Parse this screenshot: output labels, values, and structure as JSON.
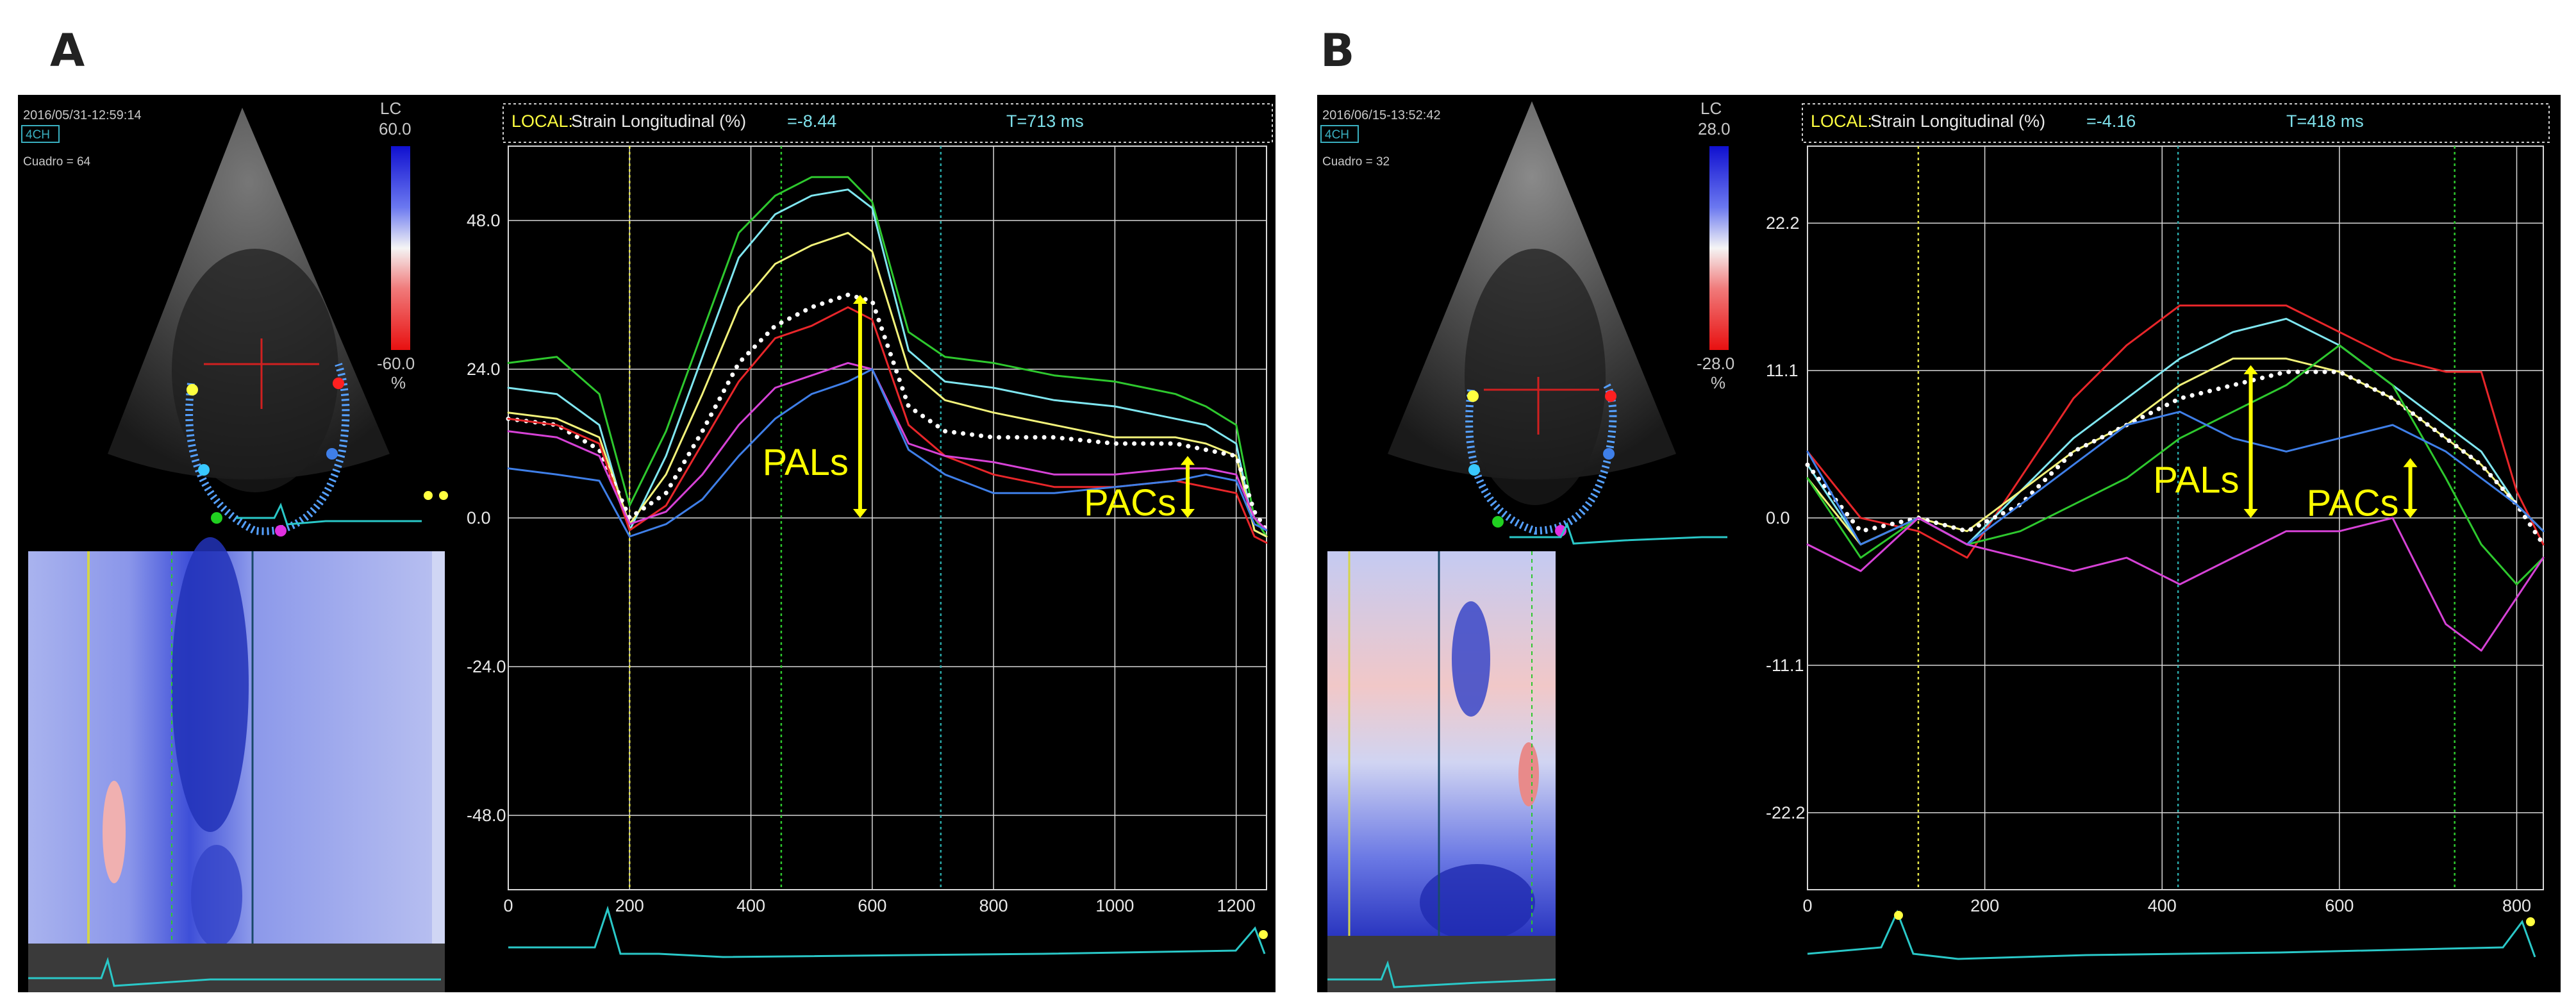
{
  "figure": {
    "panels": [
      {
        "letter": "A",
        "timestamp": "2016/05/31-12:59:14",
        "view": "4CH",
        "frame": "Cuadro = 64",
        "colorbar_label": "LC",
        "colorbar_max": "60.0",
        "colorbar_min": "-60.0",
        "colorbar_unit": "%",
        "header_local": "LOCAL:",
        "header_param": "Strain Longitudinal (%)",
        "header_value": "=-8.44",
        "header_time": "T=713 ms",
        "annotation_pals": "PALs",
        "annotation_pacs": "PACs",
        "colors": {
          "red": "#e8262a",
          "green": "#2ec82e",
          "cyan": "#7fe6f0",
          "yellow": "#f2f27a",
          "blue": "#3f7fe8",
          "magenta": "#d642d6",
          "white": "#ffffff",
          "arrow": "#ffff00"
        }
      },
      {
        "letter": "B",
        "timestamp": "2016/06/15-13:52:42",
        "view": "4CH",
        "frame": "Cuadro = 32",
        "colorbar_label": "LC",
        "colorbar_max": "28.0",
        "colorbar_min": "-28.0",
        "colorbar_unit": "%",
        "header_local": "LOCAL:",
        "header_param": "Strain Longitudinal (%)",
        "header_value": "=-4.16",
        "header_time": "T=418 ms",
        "annotation_pals": "PALs",
        "annotation_pacs": "PACs",
        "colors": {
          "red": "#e8262a",
          "green": "#2ec82e",
          "cyan": "#7fe6f0",
          "yellow": "#f2f27a",
          "blue": "#3f7fe8",
          "magenta": "#d642d6",
          "white": "#ffffff",
          "arrow": "#ffff00"
        }
      }
    ]
  },
  "chart_data": [
    {
      "panel": "A",
      "type": "line",
      "title": "Strain Longitudinal (%)",
      "xlabel": "ms",
      "ylabel": "%",
      "xlim": [
        0,
        1250
      ],
      "ylim": [
        -60,
        60
      ],
      "xticks": [
        0,
        200,
        400,
        600,
        800,
        1000,
        1200
      ],
      "yticks": [
        48.0,
        24.0,
        0.0,
        -24.0,
        -48.0
      ],
      "ytick_labels": [
        "48.0",
        "24.0",
        "0.0",
        "-24.0",
        "-48.0"
      ],
      "xtick_labels": [
        "0",
        "200",
        "400",
        "600",
        "800",
        "1000",
        "1200"
      ],
      "vertical_markers": [
        {
          "x": 200,
          "color": "#e6e64a"
        },
        {
          "x": 450,
          "color": "#2ec82e"
        },
        {
          "x": 713,
          "color": "#2aa8a8"
        }
      ],
      "series": [
        {
          "name": "green",
          "color": "#2ec82e",
          "x": [
            0,
            80,
            150,
            200,
            260,
            320,
            380,
            440,
            500,
            560,
            600,
            660,
            720,
            800,
            900,
            1000,
            1100,
            1150,
            1200,
            1230,
            1250
          ],
          "y": [
            25,
            26,
            20,
            2,
            14,
            30,
            46,
            52,
            55,
            55,
            51,
            30,
            26,
            25,
            23,
            22,
            20,
            18,
            15,
            0,
            -3
          ]
        },
        {
          "name": "cyan",
          "color": "#7fe6f0",
          "x": [
            0,
            80,
            150,
            200,
            260,
            320,
            380,
            440,
            500,
            560,
            600,
            660,
            720,
            800,
            900,
            1000,
            1100,
            1150,
            1200,
            1230,
            1250
          ],
          "y": [
            21,
            20,
            15,
            -2,
            10,
            26,
            42,
            49,
            52,
            53,
            50,
            27,
            22,
            21,
            19,
            18,
            16,
            15,
            12,
            -2,
            -3
          ]
        },
        {
          "name": "yellow",
          "color": "#f2f27a",
          "x": [
            0,
            80,
            150,
            200,
            260,
            320,
            380,
            440,
            500,
            560,
            600,
            660,
            720,
            800,
            900,
            1000,
            1100,
            1150,
            1200,
            1230,
            1250
          ],
          "y": [
            17,
            16,
            13,
            -1,
            7,
            20,
            34,
            41,
            44,
            46,
            43,
            24,
            19,
            17,
            15,
            13,
            13,
            12,
            10,
            -2,
            -3
          ]
        },
        {
          "name": "white-mean",
          "color": "#ffffff",
          "dotted": true,
          "x": [
            0,
            80,
            150,
            200,
            260,
            320,
            380,
            440,
            500,
            560,
            600,
            660,
            720,
            800,
            900,
            1000,
            1100,
            1150,
            1200,
            1230,
            1250
          ],
          "y": [
            16,
            15,
            11,
            0,
            4,
            14,
            25,
            31,
            34,
            36,
            35,
            18,
            14,
            13,
            13,
            12,
            12,
            11,
            10,
            1,
            -2
          ]
        },
        {
          "name": "red",
          "color": "#e8262a",
          "x": [
            0,
            80,
            150,
            200,
            260,
            320,
            380,
            440,
            500,
            560,
            600,
            660,
            720,
            800,
            900,
            1000,
            1100,
            1150,
            1200,
            1230,
            1250
          ],
          "y": [
            16,
            15,
            12,
            -2,
            2,
            12,
            22,
            29,
            31,
            34,
            32,
            15,
            10,
            7,
            5,
            5,
            6,
            5,
            4,
            -3,
            -4
          ]
        },
        {
          "name": "magenta",
          "color": "#d642d6",
          "x": [
            0,
            80,
            150,
            200,
            260,
            320,
            380,
            440,
            500,
            560,
            600,
            660,
            720,
            800,
            900,
            1000,
            1100,
            1150,
            1200,
            1230,
            1250
          ],
          "y": [
            14,
            13,
            10,
            -1,
            1,
            7,
            15,
            21,
            23,
            25,
            24,
            12,
            10,
            9,
            7,
            7,
            8,
            8,
            7,
            0,
            -2
          ]
        },
        {
          "name": "blue",
          "color": "#3f7fe8",
          "x": [
            0,
            80,
            150,
            200,
            260,
            320,
            380,
            440,
            500,
            560,
            600,
            660,
            720,
            800,
            900,
            1000,
            1100,
            1150,
            1200,
            1230,
            1250
          ],
          "y": [
            8,
            7,
            6,
            -3,
            -1,
            3,
            10,
            16,
            20,
            22,
            24,
            11,
            7,
            4,
            4,
            5,
            6,
            7,
            6,
            -1,
            -2
          ]
        }
      ],
      "annotations": [
        {
          "label": "PALs",
          "x": 580,
          "from": 0,
          "to": 36
        },
        {
          "label": "PACs",
          "x": 1120,
          "from": 0,
          "to": 10
        }
      ]
    },
    {
      "panel": "B",
      "type": "line",
      "title": "Strain Longitudinal (%)",
      "xlabel": "ms",
      "ylabel": "%",
      "xlim": [
        0,
        830
      ],
      "ylim": [
        -28,
        28
      ],
      "xticks": [
        0,
        200,
        400,
        600,
        800
      ],
      "yticks": [
        22.2,
        11.1,
        0.0,
        -11.1,
        -22.2
      ],
      "ytick_labels": [
        "22.2",
        "11.1",
        "0.0",
        "-11.1",
        "-22.2"
      ],
      "xtick_labels": [
        "0",
        "200",
        "400",
        "600",
        "800"
      ],
      "vertical_markers": [
        {
          "x": 125,
          "color": "#e6e64a"
        },
        {
          "x": 418,
          "color": "#2aa8a8"
        },
        {
          "x": 730,
          "color": "#2ec82e"
        }
      ],
      "series": [
        {
          "name": "red",
          "color": "#e8262a",
          "x": [
            0,
            60,
            125,
            180,
            240,
            300,
            360,
            420,
            480,
            540,
            600,
            660,
            720,
            760,
            800,
            830
          ],
          "y": [
            5,
            0,
            -1,
            -3,
            3,
            9,
            13,
            16,
            16,
            16,
            14,
            12,
            11,
            11,
            2,
            -2
          ]
        },
        {
          "name": "cyan",
          "color": "#7fe6f0",
          "x": [
            0,
            60,
            125,
            180,
            240,
            300,
            360,
            420,
            480,
            540,
            600,
            660,
            720,
            760,
            800,
            830
          ],
          "y": [
            4,
            -2,
            0,
            -2,
            2,
            6,
            9,
            12,
            14,
            15,
            13,
            10,
            7,
            5,
            1,
            -1
          ]
        },
        {
          "name": "yellow",
          "color": "#f2f27a",
          "x": [
            0,
            60,
            125,
            180,
            240,
            300,
            360,
            420,
            480,
            540,
            600,
            660,
            720,
            760,
            800,
            830
          ],
          "y": [
            3,
            -2,
            0,
            -1,
            2,
            5,
            7,
            10,
            12,
            12,
            11,
            9,
            6,
            4,
            1,
            -1
          ]
        },
        {
          "name": "white-mean",
          "color": "#ffffff",
          "dotted": true,
          "x": [
            0,
            60,
            125,
            180,
            240,
            300,
            360,
            420,
            480,
            540,
            600,
            660,
            720,
            760,
            800,
            830
          ],
          "y": [
            4,
            -1,
            0,
            -1,
            1,
            5,
            7,
            9,
            10,
            11,
            11,
            9,
            6,
            4,
            1,
            -2
          ]
        },
        {
          "name": "green",
          "color": "#2ec82e",
          "x": [
            0,
            60,
            125,
            180,
            240,
            300,
            360,
            420,
            480,
            540,
            600,
            660,
            720,
            760,
            800,
            830
          ],
          "y": [
            3,
            -3,
            0,
            -2,
            -1,
            1,
            3,
            6,
            8,
            10,
            13,
            10,
            3,
            -2,
            -5,
            -3
          ]
        },
        {
          "name": "blue",
          "color": "#3f7fe8",
          "x": [
            0,
            60,
            125,
            180,
            240,
            300,
            360,
            420,
            480,
            540,
            600,
            660,
            720,
            760,
            800,
            830
          ],
          "y": [
            5,
            -2,
            0,
            -2,
            1,
            4,
            7,
            8,
            6,
            5,
            6,
            7,
            5,
            3,
            1,
            -1
          ]
        },
        {
          "name": "magenta",
          "color": "#d642d6",
          "x": [
            0,
            60,
            125,
            180,
            240,
            300,
            360,
            420,
            480,
            540,
            600,
            660,
            720,
            760,
            800,
            830
          ],
          "y": [
            -2,
            -4,
            0,
            -2,
            -3,
            -4,
            -3,
            -5,
            -3,
            -1,
            -1,
            0,
            -8,
            -10,
            -6,
            -3
          ]
        }
      ],
      "annotations": [
        {
          "label": "PALs",
          "x": 500,
          "from": 0,
          "to": 11.5
        },
        {
          "label": "PACs",
          "x": 680,
          "from": 0,
          "to": 4.5
        }
      ]
    }
  ]
}
